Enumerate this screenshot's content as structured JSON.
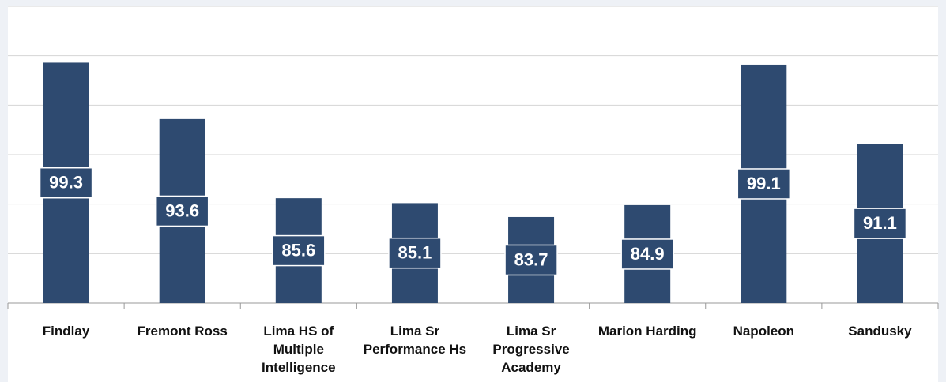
{
  "chart_data": {
    "type": "bar",
    "categories": [
      "Findlay",
      "Fremont Ross",
      "Lima HS of Multiple Intelligence",
      "Lima Sr Performance Hs",
      "Lima Sr Progressive Academy",
      "Marion Harding",
      "Napoleon",
      "Sandusky"
    ],
    "values": [
      99.3,
      93.6,
      85.6,
      85.1,
      83.7,
      84.9,
      99.1,
      91.1
    ],
    "color": "#2e4a70",
    "ylim": [
      75,
      105
    ],
    "yticks": [
      75,
      80,
      85,
      90,
      95,
      100,
      105
    ],
    "grid": true
  }
}
